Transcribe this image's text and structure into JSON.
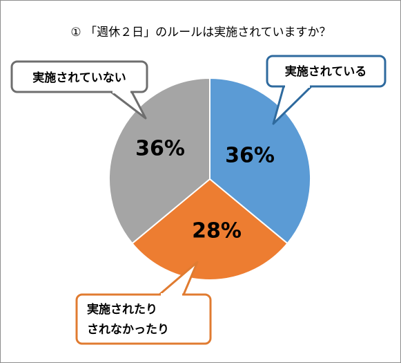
{
  "chart_data": {
    "type": "pie",
    "title": "① 「週休２日」のルールは実施されていますか？",
    "categories": [
      "実施されている",
      "実施されたり されなかったり",
      "実施されていない"
    ],
    "values": [
      36,
      28,
      36
    ],
    "value_labels": [
      "36%",
      "28%",
      "36%"
    ],
    "colors": [
      "#5b9bd5",
      "#ed7d31",
      "#a5a5a5"
    ],
    "start_angle": "12 o'clock",
    "direction": "clockwise",
    "callouts": [
      {
        "lines": [
          "実施されている"
        ],
        "border_color": "#2e6a9e"
      },
      {
        "lines": [
          "実施されたり",
          "されなかったり"
        ],
        "border_color": "#e07b30"
      },
      {
        "lines": [
          "実施されていない"
        ],
        "border_color": "#6e6e6e"
      }
    ]
  }
}
